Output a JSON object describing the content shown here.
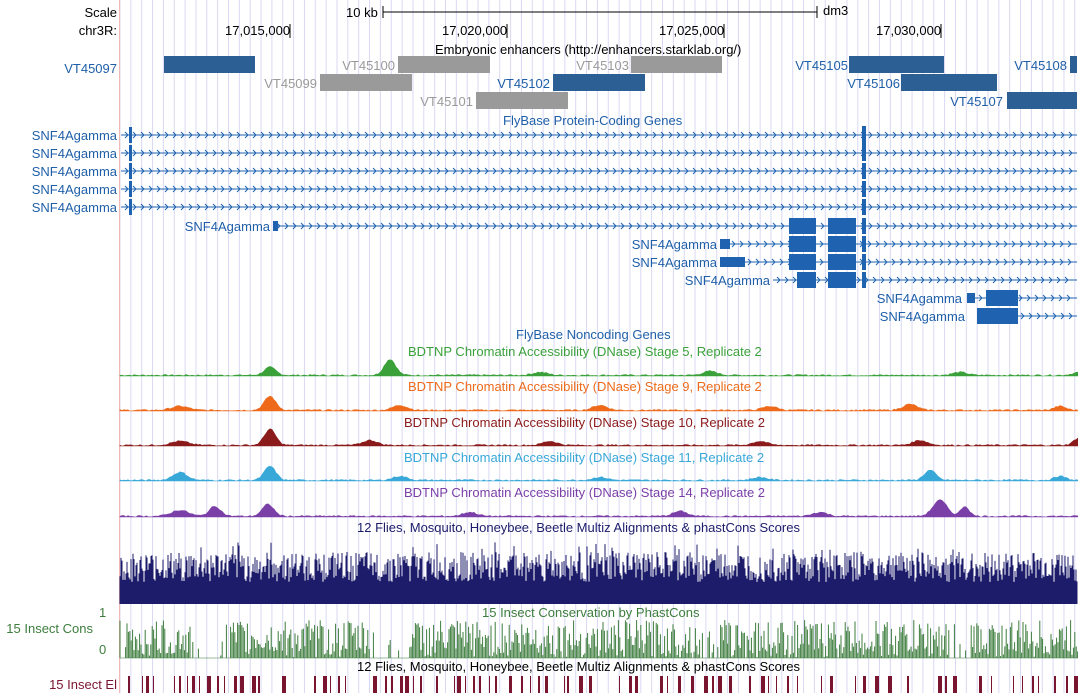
{
  "header": {
    "scale_label": "Scale",
    "scale_bar_text": "10 kb",
    "assembly": "dm3",
    "chrom_label": "chr3R:",
    "positions": [
      "17,015,000",
      "17,020,000",
      "17,025,000",
      "17,030,000"
    ]
  },
  "tracks": {
    "enhancers": {
      "title": "Embryonic enhancers (http://enhancers.starklab.org/)",
      "left_label": "VT45097",
      "items": [
        {
          "name": "VT45100",
          "color": "grey"
        },
        {
          "name": "VT45103",
          "color": "grey"
        },
        {
          "name": "VT45099",
          "color": "grey"
        },
        {
          "name": "VT45102",
          "color": "blue"
        },
        {
          "name": "VT45101",
          "color": "grey"
        },
        {
          "name": "VT45105",
          "color": "blue"
        },
        {
          "name": "VT45106",
          "color": "blue"
        },
        {
          "name": "VT45107",
          "color": "blue"
        },
        {
          "name": "VT45108",
          "color": "blue"
        }
      ]
    },
    "genes": {
      "title": "FlyBase Protein-Coding Genes",
      "gene_name": "SNF4Agamma",
      "left_rows": [
        "SNF4Agamma",
        "SNF4Agamma",
        "SNF4Agamma",
        "SNF4Agamma",
        "SNF4Agamma"
      ]
    },
    "noncoding": {
      "title": "FlyBase Noncoding Genes"
    },
    "dnase": [
      {
        "title": "BDTNP Chromatin Accessibility (DNase) Stage 5, Replicate 2",
        "color": "#3aa13a"
      },
      {
        "title": "BDTNP Chromatin Accessibility (DNase) Stage 9, Replicate 2",
        "color": "#ee6a1a"
      },
      {
        "title": "BDTNP Chromatin Accessibility (DNase) Stage 10, Replicate 2",
        "color": "#8b1a1a"
      },
      {
        "title": "BDTNP Chromatin Accessibility (DNase) Stage 11, Replicate 2",
        "color": "#38a8d8"
      },
      {
        "title": "BDTNP Chromatin Accessibility (DNase) Stage 14, Replicate 2",
        "color": "#7b3fa8"
      }
    ],
    "multiz": {
      "title": "12 Flies, Mosquito, Honeybee, Beetle Multiz Alignments & phastCons Scores",
      "color": "#1c1c6b"
    },
    "cons": {
      "title": "15 Insect Conservation by PhastCons",
      "left_label": "15 Insect Cons",
      "axis_max": "1",
      "axis_min": "0",
      "color": "#3d7d3d"
    },
    "elements": {
      "title": "12 Flies, Mosquito, Honeybee, Beetle Multiz Alignments & phastCons Scores",
      "left_label": "15 Insect El",
      "color": "#7a1530"
    }
  },
  "colors": {
    "gene_blue": "#1f63b0",
    "grid_line": "#d6d6f2",
    "enhancer_grey": "#9a9a9a",
    "enhancer_blue": "#2c5f94"
  }
}
